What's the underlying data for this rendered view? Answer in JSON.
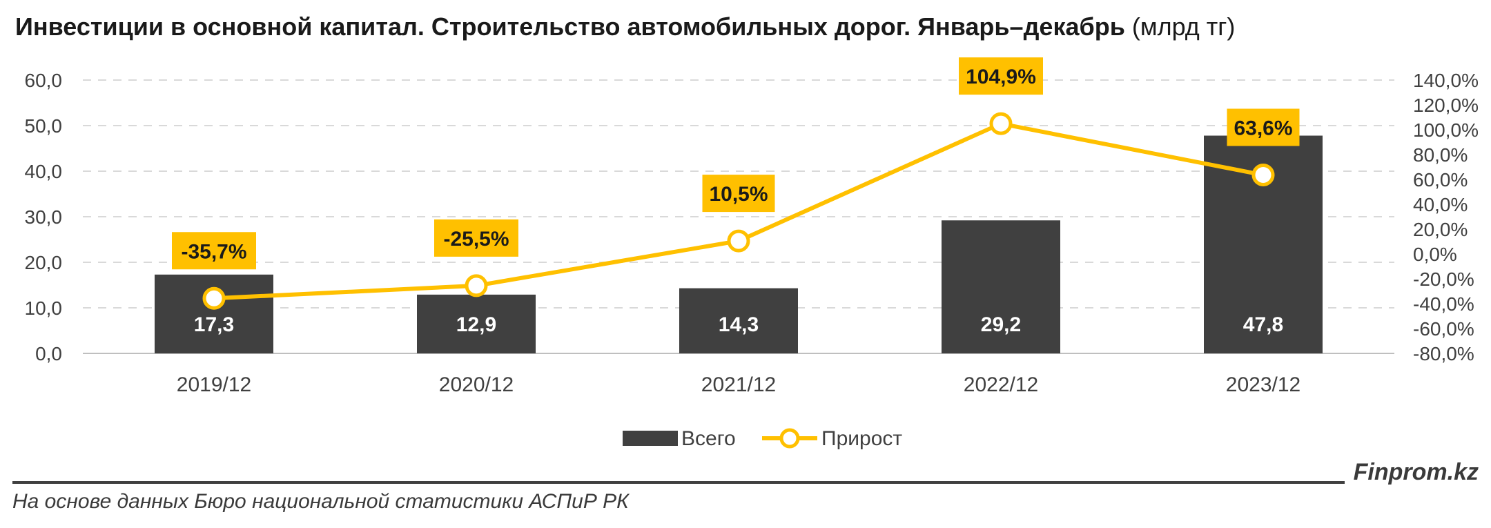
{
  "title": {
    "main": "Инвестиции в основной капитал. Строительство автомобильных дорог. Январь–декабрь",
    "unit": "(млрд тг)"
  },
  "chart_data": {
    "type": "bar+line",
    "categories": [
      "2019/12",
      "2020/12",
      "2021/12",
      "2022/12",
      "2023/12"
    ],
    "series": [
      {
        "name": "Всего",
        "type": "bar",
        "axis": "left",
        "values": [
          17.3,
          12.9,
          14.3,
          29.2,
          47.8
        ],
        "labels": [
          "17,3",
          "12,9",
          "14,3",
          "29,2",
          "47,8"
        ],
        "color": "#404040"
      },
      {
        "name": "Прирост",
        "type": "line",
        "axis": "right",
        "values": [
          -35.7,
          -25.5,
          10.5,
          104.9,
          63.6
        ],
        "labels": [
          "-35,7%",
          "-25,5%",
          "10,5%",
          "104,9%",
          "63,6%"
        ],
        "color": "#FFC000"
      }
    ],
    "y_left": {
      "range": [
        0,
        60
      ],
      "ticks": [
        "0,0",
        "10,0",
        "20,0",
        "30,0",
        "40,0",
        "50,0",
        "60,0"
      ]
    },
    "y_right": {
      "range": [
        -80,
        140
      ],
      "ticks": [
        "-80,0%",
        "-60,0%",
        "-40,0%",
        "-20,0%",
        "0,0%",
        "20,0%",
        "40,0%",
        "60,0%",
        "80,0%",
        "100,0%",
        "120,0%",
        "140,0%"
      ]
    },
    "grid": true,
    "legend_position": "bottom"
  },
  "footer": {
    "brand": "Finprom.kz",
    "source": "На основе данных Бюро национальной статистики АСПиР РК"
  },
  "colors": {
    "bar": "#404040",
    "line": "#FFC000",
    "text": "#404040",
    "grid": "#d9d9d9"
  }
}
